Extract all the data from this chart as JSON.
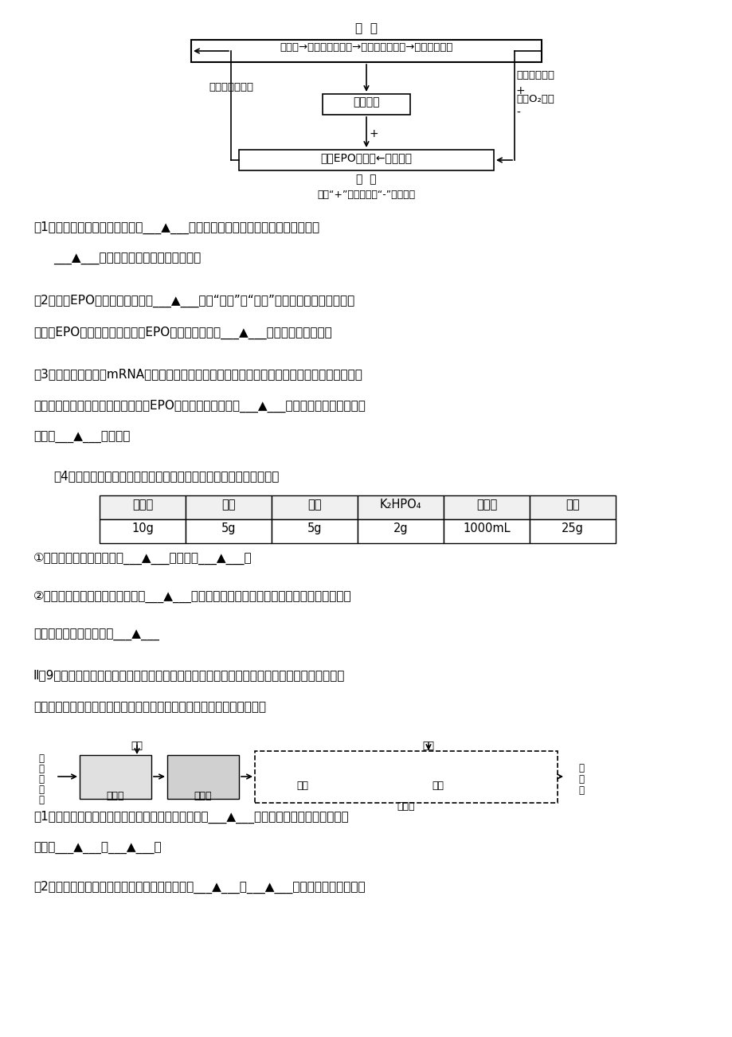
{
  "bg_color": "#ffffff",
  "diagram_title": "骨  髓",
  "box1_text": "干细胞→早期红系祖细胞→晩期红系祖细胞→红系前体细胞",
  "box2_text": "机体缺氧",
  "box3_text": "产生EPO的细胞←氧感受器",
  "label_epo": "促红细胞生成素",
  "label_kidney": "肾  脏",
  "label_rbc": "红细胞的数量",
  "label_blood_o2": "血液O₂分压",
  "label_note": "注：“+”表示促进，“-”表示抑制",
  "plus1": "+",
  "plus2": "+",
  "minus1": "-",
  "q1": "（1）促红细胞生成素的靶细胞是___▲___，红细胞数量增多有利于机体组织细胞的",
  "q1b": "___▲___增强，为运动提供充足的能量。",
  "q2": "（2）使用EPO的有效方法应该是___▲___（填“注射”或“口服”），用该方法可能刺激人",
  "q2b": "体产生EPO抗体，与自身产生的EPO发生反应，造成___▲___（免疫异常疾病）。",
  "q3": "（3）从肾脏细胞提取mRNA，通过反转录法获得目的基因，制成基因兴奋剂，由腺病毒导入到人",
  "q3b": "体的正常细胞中，就能形成一个局部EPO制造基地，这是一种___▲___技术。在基因操作中，腺",
  "q3c": "病毒起___▲___的作用。",
  "q4": "（4）某研究性学习小组准备对腺病毒进行培养，设计的培养基如下表",
  "table_headers": [
    "蛋白肨",
    "乳糖",
    "蔗糖",
    "K₂HPO₄",
    "蒸馏水",
    "琼脂"
  ],
  "table_values": [
    "10g",
    "5g",
    "5g",
    "2g",
    "1000mL",
    "25g"
  ],
  "q4a": "①该小组的实验能否成功？___▲___，原因是___▲___。",
  "q4b": "②从物理性质来看，上述培养基为___▲___培养基。若用上述培养基检测自来水中大肠杆菌的",
  "q4c": "含量，则必须向其中加入___▲___",
  "q5_header": "Ⅱ（9分）某奶牛场每天都排放含有粪便、饶料残渣的废水，如果不处理将会严重污染环境及影响",
  "q5b": "周边人、畜的饮水安全等。下图是该奶牛场废水处理的流程图，请回答：",
  "q6a": "（1）废水流入厌氧池前要经过稀释处理，目的是防止___▲___；输入氧化塘水域生态系统的",
  "q6b": "能量有___▲___、___▲___。",
  "q7": "（2）废水中的有机物被微生物分解，分解方式是___▲___、___▲___。磷酸根离子被植物细"
}
